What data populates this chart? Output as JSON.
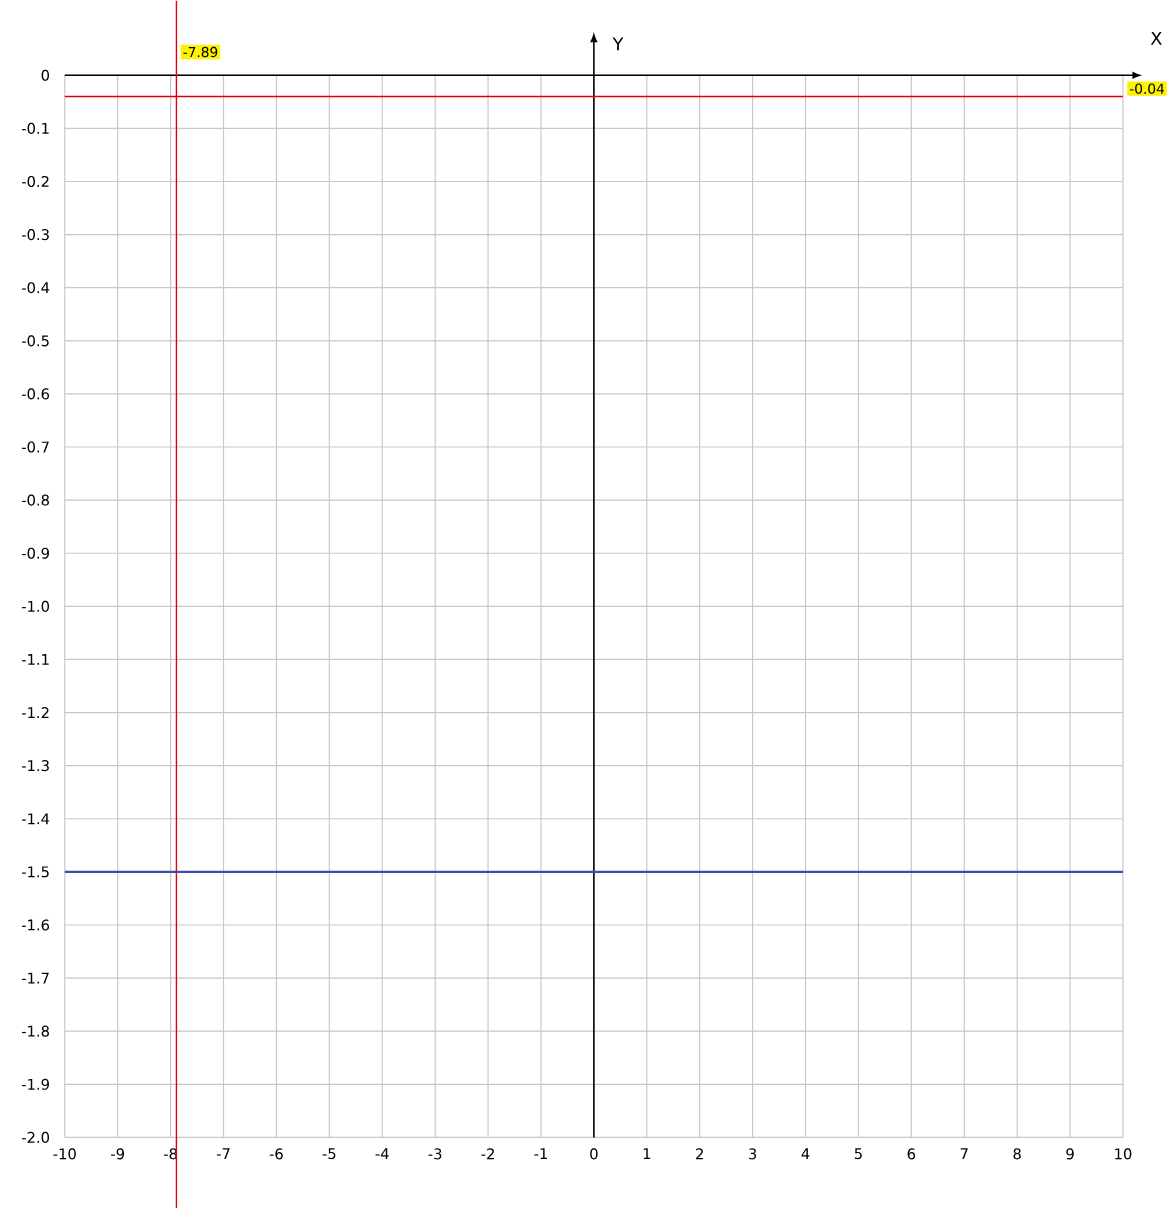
{
  "chart_data": {
    "type": "line",
    "xlabel": "X",
    "ylabel": "Y",
    "x": [
      -10,
      10
    ],
    "series": [
      {
        "color": "#3a4fa8",
        "values": [
          -1.5,
          -1.5
        ]
      }
    ],
    "xlim": [
      -10,
      10
    ],
    "ylim": [
      -2,
      0
    ],
    "xticks": [
      -10,
      -9,
      -8,
      -7,
      -6,
      -5,
      -4,
      -3,
      -2,
      -1,
      0,
      1,
      2,
      3,
      4,
      5,
      6,
      7,
      8,
      9,
      10
    ],
    "yticks": [
      {
        "value": -2,
        "label": "-2.0"
      },
      -1.9,
      -1.8,
      -1.7,
      -1.6,
      -1.5,
      -1.4,
      -1.3,
      -1.2,
      -1.1,
      {
        "value": -1,
        "label": "-1.0"
      },
      -0.9,
      -0.8,
      -0.7,
      -0.6,
      -0.5,
      -0.4,
      -0.3,
      -0.2,
      -0.1,
      0
    ],
    "grid": true,
    "marker": "none",
    "line_style": "solid",
    "ref_lines": [
      {
        "axis": "x",
        "value": -7.89,
        "label": "-7.89",
        "color": "#e00000"
      },
      {
        "axis": "y",
        "value": -0.04,
        "label": "-0.04",
        "color": "#e00000"
      }
    ]
  }
}
